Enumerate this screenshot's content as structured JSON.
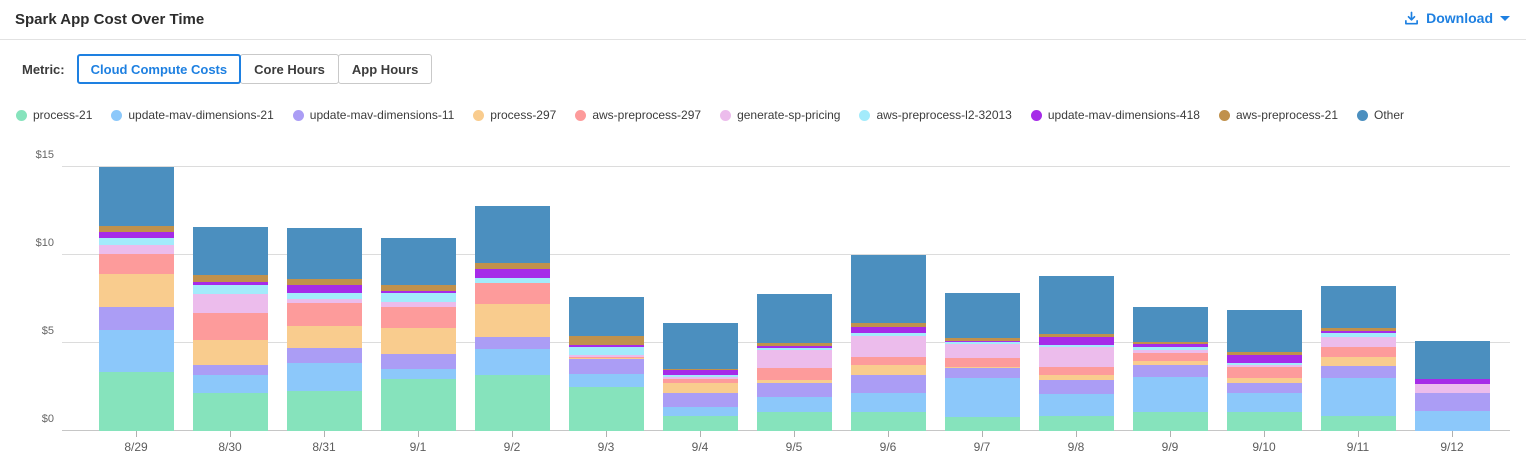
{
  "header": {
    "title": "Spark App Cost Over Time",
    "download_label": "Download"
  },
  "metric": {
    "label": "Metric:",
    "options": [
      {
        "label": "Cloud Compute Costs",
        "selected": true
      },
      {
        "label": "Core Hours",
        "selected": false
      },
      {
        "label": "App Hours",
        "selected": false
      }
    ]
  },
  "colors": {
    "accent_blue": "#1e80e1",
    "grid": "#dcdcdc",
    "axis_text": "#666666"
  },
  "chart_data": {
    "type": "bar",
    "stacked": true,
    "grid": true,
    "legend_position": "top",
    "ylim": [
      0,
      15
    ],
    "yticks": [
      0,
      5,
      10,
      15
    ],
    "ytick_labels": [
      "$0",
      "$5",
      "$10",
      "$15"
    ],
    "categories": [
      "8/29",
      "8/30",
      "8/31",
      "9/1",
      "9/2",
      "9/3",
      "9/4",
      "9/5",
      "9/6",
      "9/7",
      "9/8",
      "9/9",
      "9/10",
      "9/11",
      "9/12"
    ],
    "series": [
      {
        "name": "process-21",
        "color": "#86e3bc",
        "values": [
          3.35,
          2.18,
          2.27,
          2.94,
          3.16,
          2.48,
          0.85,
          1.06,
          1.08,
          0.81,
          0.87,
          1.06,
          1.06,
          0.87,
          0
        ]
      },
      {
        "name": "update-mav-dimensions-21",
        "color": "#8cc8fa",
        "values": [
          2.37,
          0.98,
          1.61,
          0.61,
          1.49,
          0.76,
          0.53,
          0.87,
          1.06,
          2.18,
          1.23,
          2.03,
          1.08,
          2.16,
          1.14
        ]
      },
      {
        "name": "update-mav-dimensions-11",
        "color": "#ab9df5",
        "values": [
          1.32,
          0.59,
          0.85,
          0.83,
          0.7,
          0.83,
          0.8,
          0.78,
          1.02,
          0.57,
          0.8,
          0.66,
          0.57,
          0.68,
          1.04
        ]
      },
      {
        "name": "process-297",
        "color": "#f9cc8e",
        "values": [
          1.86,
          1.42,
          1.23,
          1.5,
          1.86,
          0.08,
          0.53,
          0.19,
          0.57,
          0.1,
          0.27,
          0.23,
          0.28,
          0.51,
          0
        ]
      },
      {
        "name": "aws-preprocess-297",
        "color": "#fd9b9b",
        "values": [
          1.18,
          1.55,
          1.29,
          1.19,
          1.18,
          0.08,
          0.23,
          0.66,
          0.49,
          0.5,
          0.49,
          0.44,
          0.66,
          0.57,
          0
        ]
      },
      {
        "name": "generate-sp-pricing",
        "color": "#ecbcec",
        "values": [
          0.49,
          1.06,
          0.23,
          0.28,
          0,
          0.08,
          0.11,
          1.02,
          1.17,
          0.76,
          1.14,
          0.19,
          0.09,
          0.57,
          0.47
        ]
      },
      {
        "name": "aws-preprocess-l2-32013",
        "color": "#a3ebfb",
        "values": [
          0.42,
          0.53,
          0.34,
          0.47,
          0.28,
          0.45,
          0.11,
          0.15,
          0.19,
          0.13,
          0.1,
          0.15,
          0.13,
          0.23,
          0
        ]
      },
      {
        "name": "update-mav-dimensions-418",
        "color": "#a62be8",
        "values": [
          0.32,
          0.13,
          0.47,
          0.11,
          0.53,
          0.11,
          0.3,
          0.08,
          0.34,
          0.08,
          0.47,
          0.17,
          0.44,
          0.11,
          0.3
        ]
      },
      {
        "name": "aws-preprocess-21",
        "color": "#c0914c",
        "values": [
          0.36,
          0.42,
          0.32,
          0.38,
          0.32,
          0.55,
          0.09,
          0.17,
          0.19,
          0.17,
          0.15,
          0.15,
          0.19,
          0.17,
          0
        ]
      },
      {
        "name": "Other",
        "color": "#4b8fbf",
        "values": [
          3.31,
          2.71,
          2.9,
          2.63,
          3.26,
          2.2,
          2.61,
          2.8,
          3.88,
          2.52,
          3.29,
          1.99,
          2.4,
          2.37,
          2.16
        ]
      }
    ]
  }
}
